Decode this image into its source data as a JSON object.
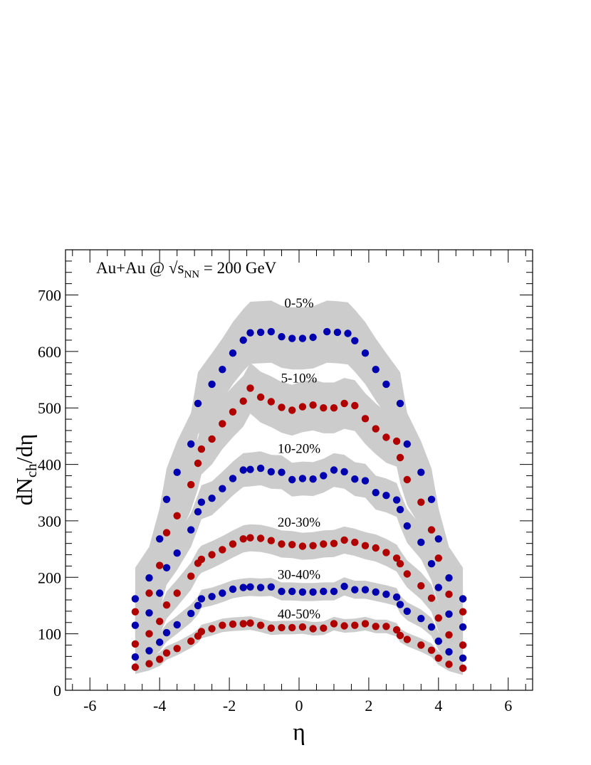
{
  "chart_data": {
    "type": "scatter",
    "title": "",
    "system_label": {
      "pre": "Au+Au @ √s",
      "sub": "NN",
      "post": " = 200 GeV"
    },
    "xlabel": "η",
    "ylabel": {
      "main": "dN",
      "sub": "ch",
      "post": "/dη"
    },
    "xlim": [
      -6.7,
      6.7
    ],
    "ylim": [
      0,
      780
    ],
    "xticks": [
      -6,
      -4,
      -2,
      0,
      2,
      4,
      6
    ],
    "yticks": [
      0,
      100,
      200,
      300,
      400,
      500,
      600,
      700
    ],
    "grid": false,
    "legend": "none",
    "band_color": "#cccccc",
    "series": [
      {
        "name": "0-5%",
        "color": "#0000b0",
        "points": [
          [
            -4.7,
            162
          ],
          [
            -4.3,
            199
          ],
          [
            -4.0,
            268
          ],
          [
            -3.8,
            338
          ],
          [
            -3.5,
            386
          ],
          [
            -3.1,
            436
          ],
          [
            -2.9,
            508
          ],
          [
            -2.5,
            542
          ],
          [
            -2.2,
            568
          ],
          [
            -1.9,
            597
          ],
          [
            -1.6,
            620
          ],
          [
            -1.4,
            633
          ],
          [
            -1.1,
            634
          ],
          [
            -0.8,
            635
          ],
          [
            -0.5,
            626
          ],
          [
            -0.2,
            623
          ],
          [
            0.1,
            623
          ],
          [
            0.4,
            625
          ],
          [
            0.8,
            635
          ],
          [
            1.1,
            634
          ],
          [
            1.4,
            632
          ],
          [
            1.6,
            619
          ],
          [
            1.9,
            597
          ],
          [
            2.2,
            568
          ],
          [
            2.5,
            542
          ],
          [
            2.9,
            508
          ],
          [
            3.1,
            436
          ],
          [
            3.5,
            386
          ],
          [
            3.8,
            338
          ],
          [
            4.0,
            268
          ],
          [
            4.3,
            199
          ],
          [
            4.7,
            162
          ]
        ],
        "band_half_width": 55
      },
      {
        "name": "5-10%",
        "color": "#b00000",
        "points": [
          [
            -4.7,
            139
          ],
          [
            -4.3,
            172
          ],
          [
            -4.0,
            221
          ],
          [
            -3.8,
            279
          ],
          [
            -3.5,
            309
          ],
          [
            -3.1,
            364
          ],
          [
            -2.9,
            402
          ],
          [
            -2.8,
            427
          ],
          [
            -2.5,
            445
          ],
          [
            -2.2,
            472
          ],
          [
            -1.9,
            493
          ],
          [
            -1.6,
            512
          ],
          [
            -1.4,
            535
          ],
          [
            -1.1,
            519
          ],
          [
            -0.8,
            511
          ],
          [
            -0.5,
            501
          ],
          [
            -0.2,
            496
          ],
          [
            0.1,
            502
          ],
          [
            0.4,
            505
          ],
          [
            0.7,
            500
          ],
          [
            1.0,
            500
          ],
          [
            1.3,
            508
          ],
          [
            1.6,
            504
          ],
          [
            1.9,
            481
          ],
          [
            2.2,
            463
          ],
          [
            2.5,
            448
          ],
          [
            2.8,
            441
          ],
          [
            2.9,
            412
          ],
          [
            3.1,
            373
          ],
          [
            3.5,
            333
          ],
          [
            3.8,
            284
          ],
          [
            4.0,
            234
          ],
          [
            4.3,
            170
          ],
          [
            4.7,
            139
          ]
        ],
        "band_half_width": 45
      },
      {
        "name": "10-20%",
        "color": "#0000b0",
        "points": [
          [
            -4.7,
            115
          ],
          [
            -4.3,
            137
          ],
          [
            -4.0,
            172
          ],
          [
            -3.8,
            217
          ],
          [
            -3.5,
            243
          ],
          [
            -3.1,
            284
          ],
          [
            -2.9,
            316
          ],
          [
            -2.8,
            333
          ],
          [
            -2.5,
            340
          ],
          [
            -2.2,
            357
          ],
          [
            -1.9,
            375
          ],
          [
            -1.6,
            390
          ],
          [
            -1.4,
            391
          ],
          [
            -1.1,
            393
          ],
          [
            -0.8,
            387
          ],
          [
            -0.5,
            386
          ],
          [
            -0.2,
            373
          ],
          [
            0.1,
            375
          ],
          [
            0.4,
            374
          ],
          [
            0.7,
            380
          ],
          [
            1.0,
            390
          ],
          [
            1.3,
            387
          ],
          [
            1.6,
            374
          ],
          [
            1.9,
            371
          ],
          [
            2.2,
            350
          ],
          [
            2.5,
            345
          ],
          [
            2.8,
            337
          ],
          [
            2.9,
            320
          ],
          [
            3.1,
            291
          ],
          [
            3.5,
            262
          ],
          [
            3.8,
            224
          ],
          [
            4.0,
            182
          ],
          [
            4.3,
            135
          ],
          [
            4.7,
            112
          ]
        ],
        "band_half_width": 30
      },
      {
        "name": "20-30%",
        "color": "#b00000",
        "points": [
          [
            -4.7,
            82
          ],
          [
            -4.3,
            100
          ],
          [
            -4.0,
            122
          ],
          [
            -3.8,
            151
          ],
          [
            -3.5,
            172
          ],
          [
            -3.1,
            202
          ],
          [
            -2.9,
            225
          ],
          [
            -2.8,
            232
          ],
          [
            -2.5,
            240
          ],
          [
            -2.2,
            249
          ],
          [
            -1.9,
            259
          ],
          [
            -1.6,
            268
          ],
          [
            -1.4,
            270
          ],
          [
            -1.1,
            269
          ],
          [
            -0.8,
            265
          ],
          [
            -0.5,
            259
          ],
          [
            -0.2,
            258
          ],
          [
            0.1,
            255
          ],
          [
            0.4,
            256
          ],
          [
            0.7,
            259
          ],
          [
            1.0,
            260
          ],
          [
            1.3,
            266
          ],
          [
            1.6,
            262
          ],
          [
            1.9,
            256
          ],
          [
            2.2,
            252
          ],
          [
            2.5,
            244
          ],
          [
            2.8,
            234
          ],
          [
            2.9,
            224
          ],
          [
            3.1,
            206
          ],
          [
            3.5,
            185
          ],
          [
            3.8,
            163
          ],
          [
            4.0,
            128
          ],
          [
            4.3,
            98
          ],
          [
            4.7,
            80
          ]
        ],
        "band_half_width": 24
      },
      {
        "name": "30-40%",
        "color": "#0000b0",
        "points": [
          [
            -4.7,
            59
          ],
          [
            -4.3,
            70
          ],
          [
            -4.0,
            85
          ],
          [
            -3.8,
            102
          ],
          [
            -3.5,
            116
          ],
          [
            -3.1,
            136
          ],
          [
            -2.9,
            150
          ],
          [
            -2.8,
            162
          ],
          [
            -2.5,
            166
          ],
          [
            -2.2,
            172
          ],
          [
            -1.9,
            179
          ],
          [
            -1.6,
            182
          ],
          [
            -1.4,
            183
          ],
          [
            -1.1,
            182
          ],
          [
            -0.8,
            183
          ],
          [
            -0.5,
            175
          ],
          [
            -0.2,
            175
          ],
          [
            0.1,
            174
          ],
          [
            0.4,
            174
          ],
          [
            0.7,
            175
          ],
          [
            1.0,
            175
          ],
          [
            1.3,
            184
          ],
          [
            1.6,
            178
          ],
          [
            1.9,
            178
          ],
          [
            2.2,
            174
          ],
          [
            2.5,
            170
          ],
          [
            2.8,
            165
          ],
          [
            2.9,
            152
          ],
          [
            3.1,
            140
          ],
          [
            3.5,
            127
          ],
          [
            3.8,
            112
          ],
          [
            4.0,
            87
          ],
          [
            4.3,
            68
          ],
          [
            4.7,
            57
          ]
        ],
        "band_half_width": 16
      },
      {
        "name": "40-50%",
        "color": "#b00000",
        "points": [
          [
            -4.7,
            41
          ],
          [
            -4.3,
            47
          ],
          [
            -4.0,
            55
          ],
          [
            -3.8,
            66
          ],
          [
            -3.5,
            74
          ],
          [
            -3.1,
            87
          ],
          [
            -2.9,
            96
          ],
          [
            -2.8,
            104
          ],
          [
            -2.5,
            109
          ],
          [
            -2.2,
            115
          ],
          [
            -1.9,
            117
          ],
          [
            -1.6,
            118
          ],
          [
            -1.4,
            119
          ],
          [
            -1.1,
            115
          ],
          [
            -0.8,
            110
          ],
          [
            -0.5,
            111
          ],
          [
            -0.2,
            111
          ],
          [
            0.1,
            112
          ],
          [
            0.4,
            109
          ],
          [
            0.7,
            110
          ],
          [
            1.0,
            118
          ],
          [
            1.3,
            114
          ],
          [
            1.6,
            115
          ],
          [
            1.9,
            118
          ],
          [
            2.2,
            113
          ],
          [
            2.5,
            113
          ],
          [
            2.8,
            107
          ],
          [
            2.9,
            97
          ],
          [
            3.1,
            90
          ],
          [
            3.5,
            80
          ],
          [
            3.8,
            71
          ],
          [
            4.0,
            57
          ],
          [
            4.3,
            46
          ],
          [
            4.7,
            39
          ]
        ],
        "band_half_width": 12
      }
    ],
    "annotations": [
      {
        "text": "0-5%",
        "x": 0,
        "y": 678
      },
      {
        "text": "5-10%",
        "x": 0,
        "y": 545
      },
      {
        "text": "10-20%",
        "x": 0,
        "y": 420
      },
      {
        "text": "20-30%",
        "x": 0,
        "y": 290
      },
      {
        "text": "30-40%",
        "x": 0,
        "y": 197
      },
      {
        "text": "40-50%",
        "x": 0,
        "y": 127
      }
    ]
  }
}
